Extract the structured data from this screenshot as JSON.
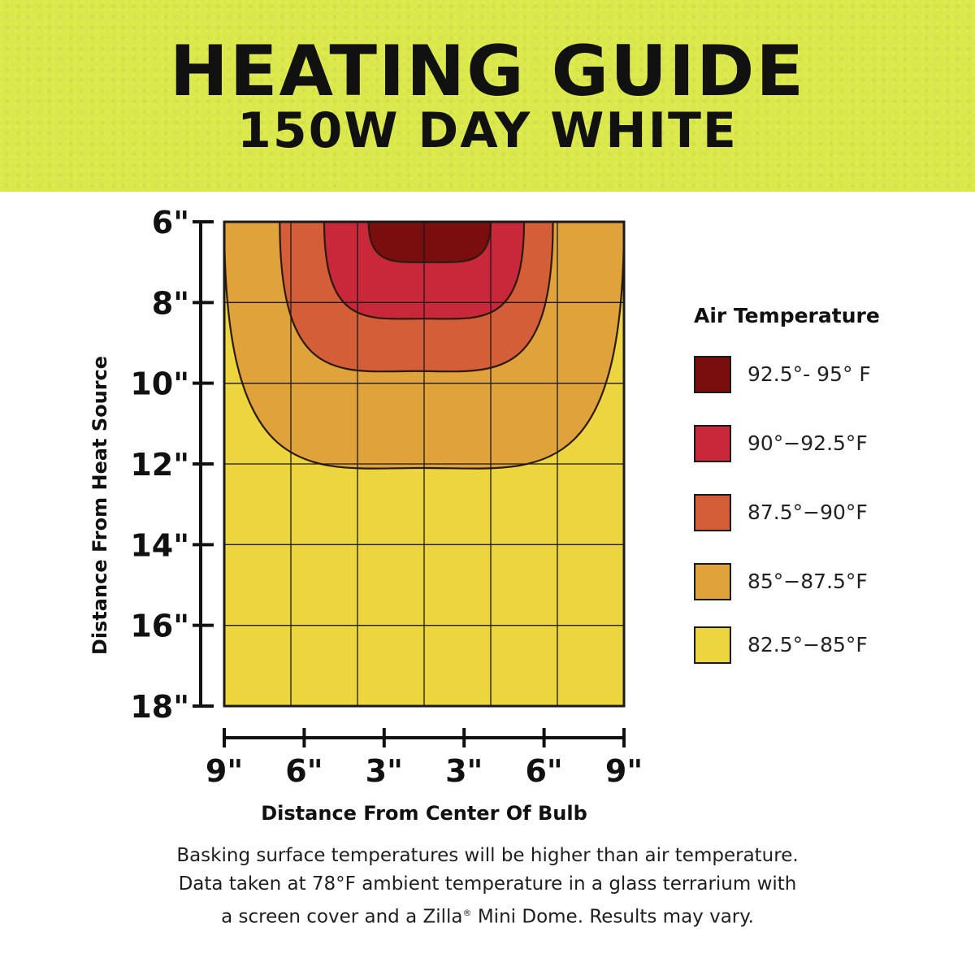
{
  "header": {
    "title": "HEATING GUIDE",
    "subtitle": "150W DAY WHITE"
  },
  "chart_data": {
    "type": "heatmap",
    "title": "HEATING GUIDE",
    "subtitle": "150W DAY WHITE",
    "ylabel": "Distance From Heat Source",
    "xlabel": "Distance From Center Of Bulb",
    "y_ticks": [
      "6\"",
      "8\"",
      "10\"",
      "12\"",
      "14\"",
      "16\"",
      "18\""
    ],
    "x_ticks": [
      "9\"",
      "6\"",
      "3\"",
      "3\"",
      "6\"",
      "9\""
    ],
    "ylim": [
      6,
      18
    ],
    "xlim": [
      -9,
      9
    ],
    "grid": true,
    "legend_position": "right",
    "legend_title": "Air Temperature",
    "zones": [
      {
        "label": "92.5°- 95° F",
        "color": "#7a0d0d",
        "x_extent": [
          -2.5,
          3.0
        ],
        "max_depth": 7.0
      },
      {
        "label": "90°−92.5°F",
        "color": "#c8283a",
        "x_extent": [
          -4.5,
          4.5
        ],
        "max_depth": 8.4
      },
      {
        "label": "87.5°−90°F",
        "color": "#d45e38",
        "x_extent": [
          -6.5,
          5.8
        ],
        "max_depth": 9.7
      },
      {
        "label": "85°−87.5°F",
        "color": "#e0a23b",
        "x_extent": [
          -9.0,
          9.0
        ],
        "max_depth": 12.1
      },
      {
        "label": "82.5°−85°F",
        "color": "#ecd53e",
        "x_extent": [
          -9.0,
          9.0
        ],
        "max_depth": 18.0
      }
    ]
  },
  "footnote": {
    "line1": "Basking surface temperatures will be higher than air temperature.",
    "line2": "Data taken at 78°F ambient temperature in a glass terrarium with",
    "line3_pre": "a screen cover and a Zilla",
    "line3_mark": "®",
    "line3_post": " Mini Dome. Results may vary."
  }
}
